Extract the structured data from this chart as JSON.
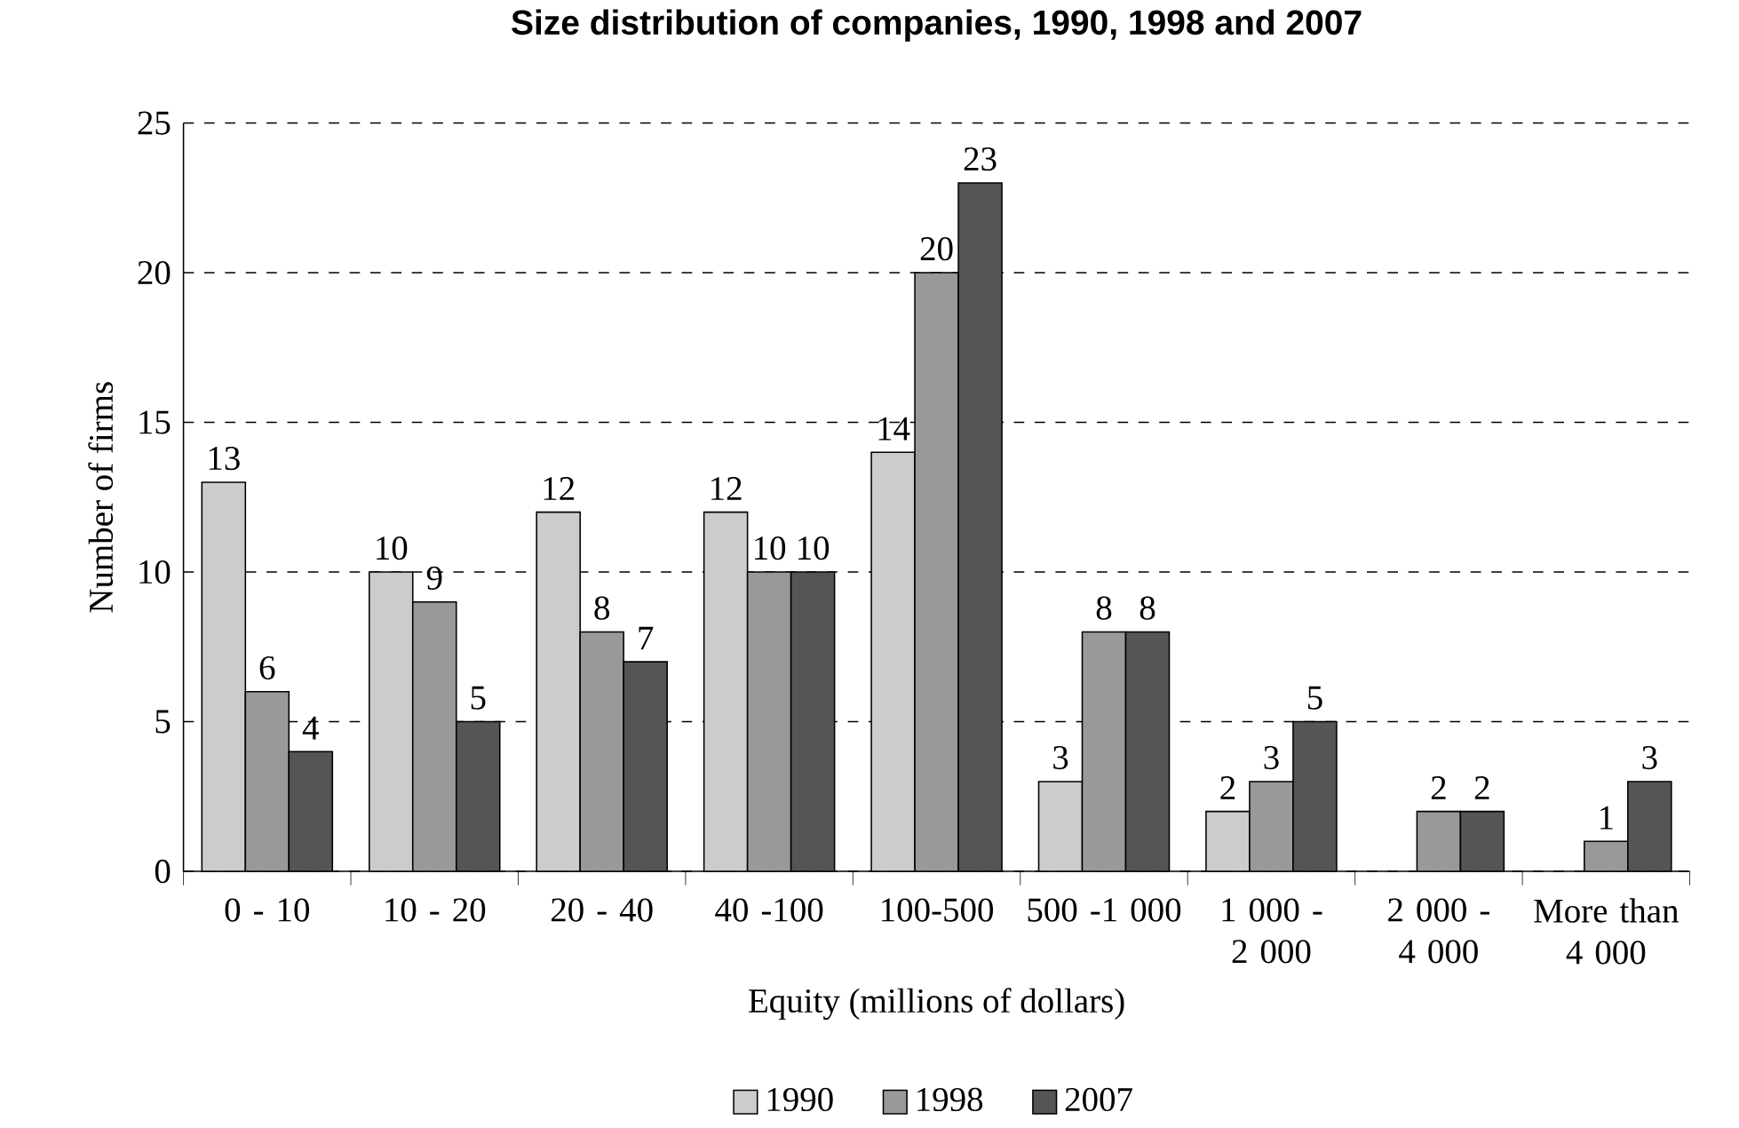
{
  "chart_data": {
    "type": "bar",
    "title": "Size distribution of companies, 1990, 1998 and 2007",
    "xlabel": "Equity (millions of dollars)",
    "ylabel": "Number of firms",
    "categories": [
      "0 - 10",
      "10 - 20",
      "20 - 40",
      "40 -100",
      "100-500",
      "500 -1 000",
      "1 000 - 2 000",
      "2 000 - 4 000",
      "More than 4 000"
    ],
    "series": [
      {
        "name": "1990",
        "color": "#cccccc",
        "values": [
          13,
          10,
          12,
          12,
          14,
          3,
          2,
          null,
          null
        ]
      },
      {
        "name": "1998",
        "color": "#999999",
        "values": [
          6,
          9,
          8,
          10,
          20,
          8,
          3,
          2,
          1
        ]
      },
      {
        "name": "2007",
        "color": "#555555",
        "values": [
          4,
          5,
          7,
          10,
          23,
          8,
          5,
          2,
          3
        ]
      }
    ],
    "ylim": [
      0,
      25
    ],
    "yticks": [
      0,
      5,
      10,
      15,
      20,
      25
    ],
    "grid": "y",
    "legend": "bottom",
    "data_labels": true
  }
}
